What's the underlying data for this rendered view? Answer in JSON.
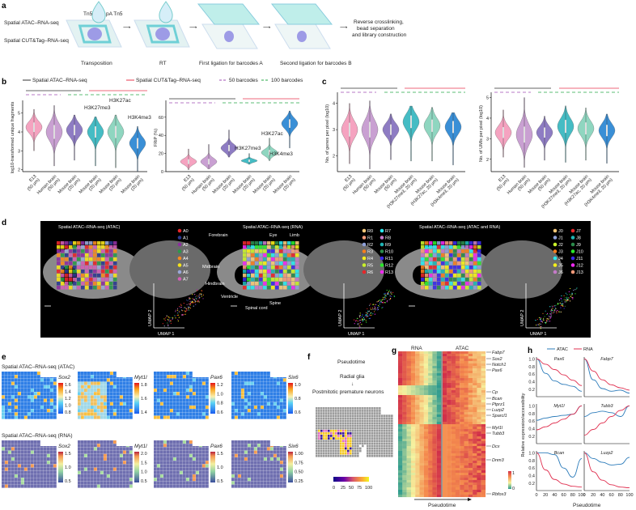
{
  "panel_labels": {
    "a": "a",
    "b": "b",
    "c": "c",
    "d": "d",
    "e": "e",
    "f": "f",
    "g": "g",
    "h": "h"
  },
  "a": {
    "methods": [
      "Spatial ATAC–RNA-seq",
      "Spatial CUT&Tag–RNA-seq"
    ],
    "reagents": {
      "tn5": "Tn5",
      "pa_tn5": "pA Tn5"
    },
    "steps": [
      "Transposition",
      "RT",
      "First ligation for barcodes A",
      "Second ligation for barcodes B"
    ],
    "final": [
      "Reverse crosslinking,",
      "bead separation",
      "and library construction"
    ]
  },
  "legend_bc": {
    "items": [
      {
        "label": "Spatial ATAC–RNA-seq",
        "color": "#333333",
        "dash": false
      },
      {
        "label": "Spatial CUT&Tag–RNA-seq",
        "color": "#e8384f",
        "dash": false
      },
      {
        "label": "50 barcodes",
        "color": "#a04fb5",
        "dash": true
      },
      {
        "label": "100 barcodes",
        "color": "#2aa84a",
        "dash": true
      }
    ]
  },
  "violin_colors": [
    "#f5a3c0",
    "#c9a0d2",
    "#8e7cc3",
    "#45bcc4",
    "#8fd6c0",
    "#3a8fd6"
  ],
  "chart_data": [
    {
      "id": "b1",
      "type": "violin",
      "ylabel": "log10-transformed unique fragments",
      "ylim": [
        1.9,
        5.5
      ],
      "yticks": [
        2,
        3,
        4,
        5
      ],
      "categories": [
        "E13 (50 µm)",
        "Human brain (50 µm)",
        "Mouse brain (20 µm)",
        "Mouse brain (20 µm)",
        "Mouse brain (20 µm)",
        "Mouse brain (20 µm)"
      ],
      "median": [
        4.25,
        4.0,
        4.1,
        4.0,
        4.0,
        3.4
      ],
      "min": [
        3.0,
        2.2,
        2.5,
        2.2,
        2.1,
        1.9
      ],
      "max": [
        5.2,
        5.4,
        4.9,
        4.8,
        4.9,
        4.3
      ],
      "annotations": [
        {
          "label": "H3K27me3",
          "category": 3
        },
        {
          "label": "H3K27ac",
          "category": 4
        },
        {
          "label": "H3K4me3",
          "category": 5
        }
      ]
    },
    {
      "id": "b2",
      "type": "violin",
      "ylabel": "FRiP (%)",
      "ylim": [
        0,
        75
      ],
      "yticks": [
        0,
        20,
        40,
        60
      ],
      "categories": [
        "E13 (50 µm)",
        "Human brain (50 µm)",
        "Mouse brain (20 µm)",
        "Mouse brain (20 µm)",
        "Mouse brain (20 µm)",
        "Mouse brain (20 µm)"
      ],
      "median": [
        11,
        11,
        26,
        12,
        21,
        53
      ],
      "min": [
        2,
        3,
        16,
        8,
        12,
        26
      ],
      "max": [
        25,
        30,
        46,
        20,
        37,
        67
      ],
      "annotations": [
        {
          "label": "H3K27me3",
          "category": 3
        },
        {
          "label": "H3K27ac",
          "category": 4
        },
        {
          "label": "H3K4me3",
          "category": 5
        }
      ]
    },
    {
      "id": "c1",
      "type": "violin",
      "ylabel": "No. of genes per pixel (log10)",
      "ylim": [
        1.4,
        4.3
      ],
      "yticks": [
        2,
        3,
        4
      ],
      "categories": [
        "E13 (50 µm)",
        "Human brain (50 µm)",
        "Mouse brain (50 µm)",
        "Mouse brain (H3K27me3, 20 µm)",
        "Mouse brain (H3K27ac, 20 µm)",
        "Mouse brain (H3K4me3, 20 µm)"
      ],
      "median": [
        3.0,
        3.0,
        3.0,
        3.3,
        3.15,
        3.1
      ],
      "min": [
        1.7,
        1.5,
        1.85,
        1.8,
        1.8,
        1.65
      ],
      "max": [
        4.0,
        4.1,
        3.6,
        3.9,
        3.85,
        3.65
      ],
      "annotations": []
    },
    {
      "id": "c2",
      "type": "violin",
      "ylabel": "No. of UMIs per pixel (log10)",
      "ylim": [
        1.4,
        5.1
      ],
      "yticks": [
        2,
        3,
        4,
        5
      ],
      "categories": [
        "E13 (50 µm)",
        "Human brain (50 µm)",
        "Mouse brain (50 µm)",
        "Mouse brain (H3K27me3, 20 µm)",
        "Mouse brain (H3K27ac, 20 µm)",
        "Mouse brain (H3K4me3, 20 µm)"
      ],
      "median": [
        3.3,
        3.2,
        3.3,
        3.6,
        3.5,
        3.4
      ],
      "min": [
        2.1,
        1.6,
        1.95,
        1.85,
        1.95,
        1.8
      ],
      "max": [
        4.4,
        5.0,
        4.1,
        4.6,
        4.5,
        4.2
      ],
      "annotations": []
    },
    {
      "id": "h",
      "type": "line",
      "xlabel": "Pseudotime",
      "ylabel": "Relative expression/accessibility",
      "x": [
        0,
        20,
        40,
        60,
        80,
        100
      ],
      "xticks": [
        0,
        20,
        40,
        60,
        80,
        100
      ],
      "yticks": [
        "0.2",
        "0.4",
        "0.6",
        "0.8",
        "1.0"
      ],
      "ylim": [
        0.05,
        1.05
      ],
      "legend": "top",
      "series_names": [
        "ATAC",
        "RNA"
      ],
      "series_colors": [
        "#2b7bba",
        "#e03050"
      ],
      "panels": [
        {
          "gene": "Pax6",
          "ATAC": [
            1,
            0.62,
            0.42,
            0.33,
            0.28,
            0.15
          ],
          "RNA": [
            1,
            0.86,
            0.72,
            0.58,
            0.44,
            0.3
          ]
        },
        {
          "gene": "Fabp7",
          "ATAC": [
            1,
            0.45,
            0.22,
            0.15,
            0.18,
            0.1
          ],
          "RNA": [
            1,
            0.68,
            0.45,
            0.32,
            0.24,
            0.18
          ]
        },
        {
          "gene": "Myt1l",
          "ATAC": [
            0.62,
            0.68,
            0.72,
            0.75,
            0.78,
            1.0
          ],
          "RNA": [
            0.37,
            0.45,
            0.55,
            0.65,
            0.78,
            1.0
          ]
        },
        {
          "gene": "Tubb3",
          "ATAC": [
            0.72,
            0.82,
            0.86,
            0.82,
            0.72,
            1.0
          ],
          "RNA": [
            0.23,
            0.38,
            0.55,
            0.72,
            0.88,
            1.0
          ]
        },
        {
          "gene": "Bcan",
          "ATAC": [
            1,
            1.0,
            0.95,
            0.6,
            0.36,
            0.85
          ],
          "RNA": [
            1,
            0.55,
            0.3,
            0.18,
            0.12,
            0.1
          ]
        },
        {
          "gene": "Luzp2",
          "ATAC": [
            1,
            0.85,
            0.75,
            0.68,
            0.7,
            0.88
          ],
          "RNA": [
            1,
            0.5,
            0.28,
            0.16,
            0.1,
            0.08
          ]
        }
      ]
    }
  ],
  "d": {
    "maps": [
      {
        "title": "Spatial ATAC–RNA-seq (ATAC)",
        "legend": [
          [
            "A0",
            "#e8262a"
          ],
          [
            "A1",
            "#2b3a8f"
          ],
          [
            "A2",
            "#8e2fa0"
          ],
          [
            "A3",
            "#2a9a4a"
          ],
          [
            "A4",
            "#f58a1f"
          ],
          [
            "A5",
            "#f5e21a"
          ],
          [
            "A6",
            "#9aa8d8"
          ],
          [
            "A7",
            "#d25fb5"
          ]
        ]
      },
      {
        "title": "Spatial ATAC–RNA-seq (RNA)",
        "legend": [
          [
            "R0",
            "#f5c97a"
          ],
          [
            "R1",
            "#f59a7a"
          ],
          [
            "R2",
            "#8ea0d8"
          ],
          [
            "R3",
            "#f57d1f"
          ],
          [
            "R4",
            "#f5f01a"
          ],
          [
            "R5",
            "#c8f02a"
          ],
          [
            "R6",
            "#e8262a"
          ],
          [
            "R7",
            "#2ae8f0"
          ],
          [
            "R8",
            "#c47ac8"
          ],
          [
            "R9",
            "#1fb5b5"
          ],
          [
            "R10",
            "#2a8a4a"
          ],
          [
            "R11",
            "#3a2ae8"
          ],
          [
            "R12",
            "#2ae82a"
          ],
          [
            "R13",
            "#f02af0"
          ]
        ],
        "anatomy": [
          "Forebrain",
          "Eye",
          "Limb",
          "Midbrain",
          "Hindbrain",
          "Ventricle",
          "Spinal cord",
          "Spine"
        ]
      },
      {
        "title": "Spatial ATAC–RNA-seq (ATAC and RNA)",
        "legend": [
          [
            "J0",
            "#f5c97a"
          ],
          [
            "J1",
            "#8ea0d8"
          ],
          [
            "J2",
            "#c8f02a"
          ],
          [
            "J3",
            "#f57d1f"
          ],
          [
            "J4",
            "#2ae8f0"
          ],
          [
            "J5",
            "#f5f01a"
          ],
          [
            "J6",
            "#c47ac8"
          ],
          [
            "J7",
            "#e8262a"
          ],
          [
            "J8",
            "#1fb5b5"
          ],
          [
            "J9",
            "#2a8a4a"
          ],
          [
            "J10",
            "#2ae82a"
          ],
          [
            "J11",
            "#3a2ae8"
          ],
          [
            "J12",
            "#f02af0"
          ],
          [
            "J13",
            "#f59a7a"
          ]
        ]
      }
    ],
    "umap_x": "UMAP 1",
    "umap_y": "UMAP 2"
  },
  "e": {
    "row_titles": [
      "Spatial ATAC–RNA-seq (ATAC)",
      "Spatial ATAC–RNA-seq (RNA)"
    ],
    "genes": [
      "Sox2",
      "Myt1l",
      "Pax6",
      "Six6"
    ],
    "atac_ticks": [
      [
        "1.6",
        "1.4",
        "1.2",
        "1.0",
        "0.8"
      ],
      [
        "1.8",
        "1.6",
        "1.4"
      ],
      [
        "1.2",
        "1.0",
        "0.8",
        "0.6"
      ],
      [
        "1.0",
        "0.8",
        "0.6"
      ]
    ],
    "rna_ticks": [
      [
        "1.5",
        "1.0",
        "0.5"
      ],
      [
        "2.0",
        "1.5",
        "1.0",
        "0.5"
      ],
      [
        "1.5",
        "1.0",
        "0.5"
      ],
      [
        "1.00",
        "0.75",
        "0.50",
        "0.25"
      ]
    ]
  },
  "f": {
    "title": "Pseudotime",
    "from": "Radial glia",
    "arrow": "↓",
    "to": "Postmitotic premature neurons",
    "ticks": [
      "0",
      "25",
      "50",
      "75",
      "100"
    ]
  },
  "g": {
    "columns": [
      "RNA",
      "ATAC"
    ],
    "genes": [
      "Fabp7",
      "Sox2",
      "Notch1",
      "Pax6",
      "Cp",
      "Bcan",
      "Ptprz1",
      "Luzp2",
      "Sparcl1",
      "Myt1l",
      "Tubb3",
      "Dcx",
      "Dnm3",
      "Rbfox3"
    ],
    "scale": [
      "1",
      "0"
    ],
    "xlabel": "Pseudotime"
  }
}
